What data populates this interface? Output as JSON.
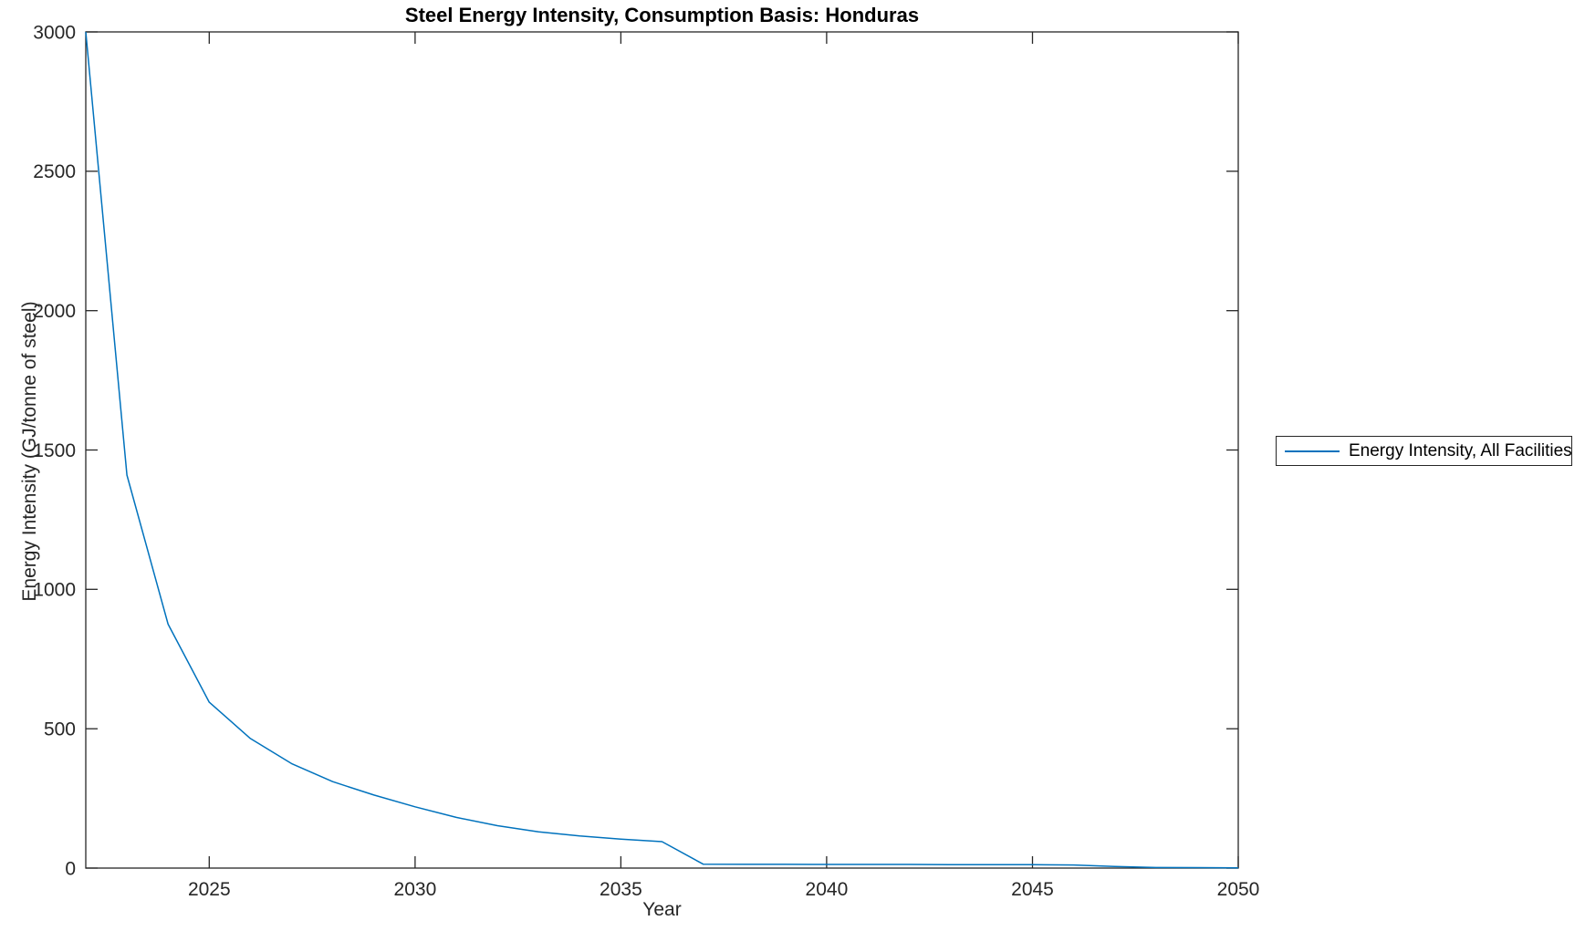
{
  "figure": {
    "title": "Steel Energy Intensity, Consumption Basis: Honduras",
    "xlabel": "Year",
    "ylabel": "Energy Intensity (GJ/tonne of steel)"
  },
  "legend": {
    "entries": [
      {
        "label": "Energy Intensity, All Facilities",
        "color": "#0072BD"
      }
    ]
  },
  "colors": {
    "series": "#0072BD",
    "axis": "#262626",
    "tick_text": "#262626",
    "title_text": "#000000",
    "background": "#ffffff"
  },
  "chart_data": {
    "type": "line",
    "title": "Steel Energy Intensity, Consumption Basis: Honduras",
    "xlabel": "Year",
    "ylabel": "Energy Intensity (GJ/tonne of steel)",
    "xlim": [
      2022,
      2050
    ],
    "ylim": [
      0,
      3000
    ],
    "xticks": [
      2025,
      2030,
      2035,
      2040,
      2045,
      2050
    ],
    "yticks": [
      0,
      500,
      1000,
      1500,
      2000,
      2500,
      3000
    ],
    "grid": false,
    "box": true,
    "legend_position": "right-outside",
    "series": [
      {
        "name": "Energy Intensity, All Facilities",
        "color": "#0072BD",
        "x": [
          2022,
          2023,
          2024,
          2025,
          2026,
          2027,
          2028,
          2029,
          2030,
          2031,
          2032,
          2033,
          2034,
          2035,
          2036,
          2037,
          2038,
          2039,
          2040,
          2041,
          2042,
          2043,
          2044,
          2045,
          2046,
          2047,
          2048,
          2049,
          2050
        ],
        "y": [
          3000,
          1410,
          875,
          595,
          465,
          375,
          310,
          262,
          220,
          182,
          152,
          130,
          115,
          104,
          95,
          14,
          13.5,
          13.5,
          13,
          13,
          13,
          12.5,
          12.5,
          12,
          11,
          6,
          2,
          1.5,
          1
        ]
      }
    ]
  }
}
